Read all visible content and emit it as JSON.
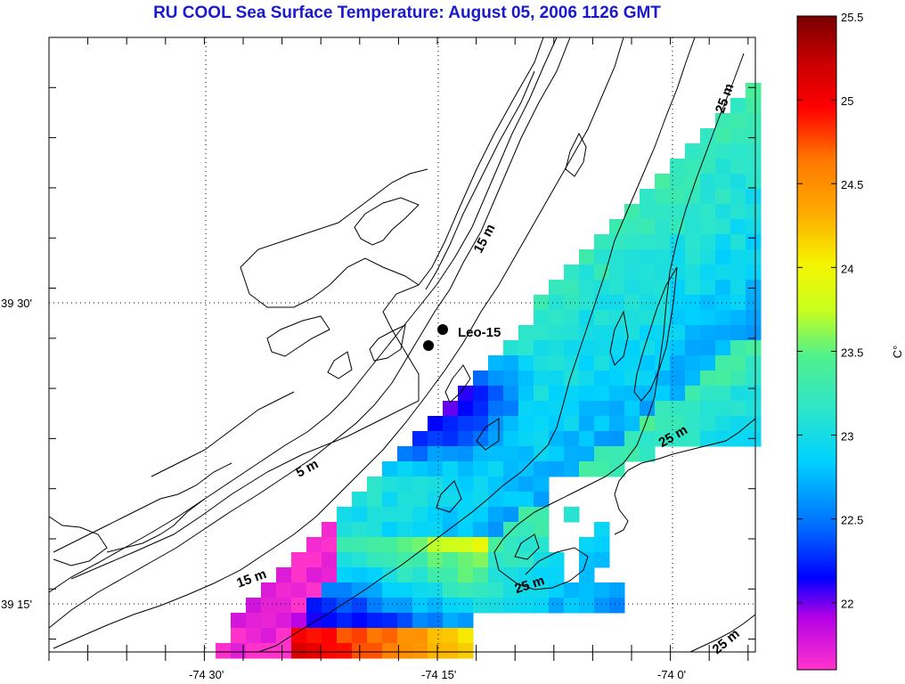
{
  "title": "RU COOL  Sea Surface Temperature:  August 05, 2006 1126 GMT",
  "axes": {
    "x_ticks": [
      "-74 30'",
      "-74 15'",
      "-74 0'"
    ],
    "y_ticks": [
      "39 30'",
      "39 15'"
    ]
  },
  "colorbar": {
    "unit": "C°",
    "min": 21.6,
    "max": 25.5,
    "ticks": [
      "22",
      "22.5",
      "23",
      "23.5",
      "24",
      "24.5",
      "25",
      "25.5"
    ]
  },
  "station": {
    "label": "Leo-15"
  },
  "contour_labels": [
    "25 m",
    "15 m",
    "5 m",
    "15 m",
    "25 m",
    "25 m",
    "25 m"
  ]
}
